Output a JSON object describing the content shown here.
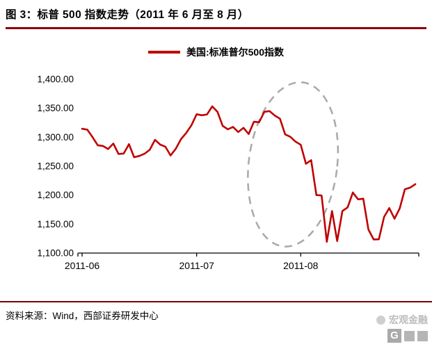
{
  "header": {
    "title": "图 3：标普 500 指数走势（2011 年 6 月至 8 月）"
  },
  "legend": {
    "label": "美国:标准普尔500指数",
    "line_color": "#C00000"
  },
  "footer": {
    "source": "资料来源：Wind，西部证券研发中心"
  },
  "watermark": {
    "text": "宏观金融",
    "logo_text": "G"
  },
  "chart_data": {
    "type": "line",
    "title": "标普 500 指数走势（2011 年 6 月至 8 月）",
    "xlabel": "",
    "ylabel": "",
    "ylim": [
      1100,
      1400
    ],
    "grid": false,
    "legend_position": "top-center",
    "y_ticks": [
      "1,400.00",
      "1,350.00",
      "1,300.00",
      "1,250.00",
      "1,200.00",
      "1,150.00",
      "1,100.00"
    ],
    "y_tick_values": [
      1400,
      1350,
      1300,
      1250,
      1200,
      1150,
      1100
    ],
    "x_tick_labels": [
      "2011-06",
      "2011-07",
      "2011-08"
    ],
    "x_tick_indices": [
      0,
      22,
      42
    ],
    "x": [
      "2011-06-01",
      "2011-06-02",
      "2011-06-03",
      "2011-06-06",
      "2011-06-07",
      "2011-06-08",
      "2011-06-09",
      "2011-06-10",
      "2011-06-13",
      "2011-06-14",
      "2011-06-15",
      "2011-06-16",
      "2011-06-17",
      "2011-06-20",
      "2011-06-21",
      "2011-06-22",
      "2011-06-23",
      "2011-06-24",
      "2011-06-27",
      "2011-06-28",
      "2011-06-29",
      "2011-06-30",
      "2011-07-01",
      "2011-07-05",
      "2011-07-06",
      "2011-07-07",
      "2011-07-08",
      "2011-07-11",
      "2011-07-12",
      "2011-07-13",
      "2011-07-14",
      "2011-07-15",
      "2011-07-18",
      "2011-07-19",
      "2011-07-20",
      "2011-07-21",
      "2011-07-22",
      "2011-07-25",
      "2011-07-26",
      "2011-07-27",
      "2011-07-28",
      "2011-07-29",
      "2011-08-01",
      "2011-08-02",
      "2011-08-03",
      "2011-08-04",
      "2011-08-05",
      "2011-08-08",
      "2011-08-09",
      "2011-08-10",
      "2011-08-11",
      "2011-08-12",
      "2011-08-15",
      "2011-08-16",
      "2011-08-17",
      "2011-08-18",
      "2011-08-19",
      "2011-08-22",
      "2011-08-23",
      "2011-08-24",
      "2011-08-25",
      "2011-08-26",
      "2011-08-29",
      "2011-08-30",
      "2011-08-31"
    ],
    "series": [
      {
        "name": "美国:标准普尔500指数",
        "color": "#C00000",
        "values": [
          1314.55,
          1312.94,
          1300.16,
          1286.17,
          1284.94,
          1279.56,
          1289.0,
          1270.98,
          1271.83,
          1287.87,
          1265.42,
          1267.64,
          1271.5,
          1278.36,
          1295.52,
          1287.14,
          1283.5,
          1268.45,
          1280.1,
          1296.67,
          1307.41,
          1320.64,
          1339.67,
          1337.88,
          1339.22,
          1353.22,
          1343.8,
          1319.49,
          1313.64,
          1317.72,
          1308.87,
          1316.14,
          1305.44,
          1326.73,
          1325.84,
          1343.8,
          1345.02,
          1337.43,
          1331.94,
          1304.89,
          1300.67,
          1292.28,
          1286.94,
          1254.05,
          1260.34,
          1200.07,
          1199.38,
          1119.46,
          1172.53,
          1120.76,
          1172.64,
          1178.81,
          1204.49,
          1192.76,
          1193.89,
          1140.65,
          1123.53,
          1123.82,
          1162.35,
          1177.6,
          1159.27,
          1176.8,
          1210.08,
          1212.92,
          1218.89
        ]
      }
    ],
    "annotation": {
      "shape": "dashed-ellipse",
      "color": "#ababab",
      "meaning": "highlight of the sharp sell-off from late July to mid August"
    }
  }
}
